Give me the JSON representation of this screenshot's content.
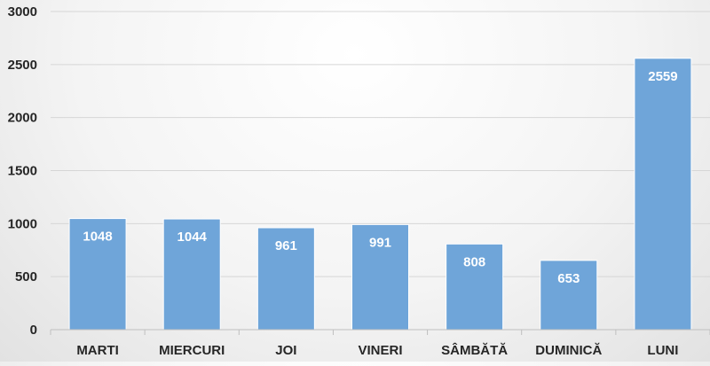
{
  "chart_data": {
    "type": "bar",
    "title": "",
    "xlabel": "",
    "ylabel": "",
    "categories": [
      "MARTI",
      "MIERCURI",
      "JOI",
      "VINERI",
      "SÂMBĂTĂ",
      "DUMINICĂ",
      "LUNI"
    ],
    "values": [
      1048,
      1044,
      961,
      991,
      808,
      653,
      2559
    ],
    "ylim": [
      0,
      3000
    ],
    "yticks": [
      0,
      500,
      1000,
      1500,
      2000,
      2500,
      3000
    ],
    "grid": true,
    "legend": "none",
    "bar_color": "#6fa5d9",
    "data_label_color": "#ffffff"
  }
}
